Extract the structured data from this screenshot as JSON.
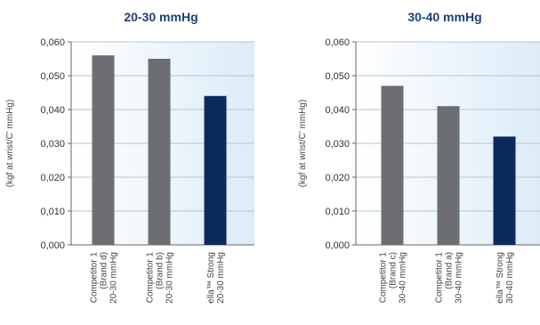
{
  "chart_data": [
    {
      "type": "bar",
      "title": "20-30 mmHg",
      "ylabel": "(kgf at wrist/C' mmHg)",
      "xlabel": "",
      "ylim": [
        0,
        0.06
      ],
      "yticks": [
        "0,000",
        "0,010",
        "0,020",
        "0,030",
        "0,040",
        "0,050",
        "0,060"
      ],
      "grid": true,
      "categories": [
        [
          "Competitor 1",
          "(Brand d)",
          "20-30 mmHg"
        ],
        [
          "Competitor 1",
          "(Brand b)",
          "20-30 mmHg"
        ],
        [
          "ella™ Strong",
          "20-30 mmHg"
        ]
      ],
      "values": [
        0.056,
        0.055,
        0.044
      ],
      "colors": [
        "#6d6e71",
        "#6d6e71",
        "#0d2a5e"
      ]
    },
    {
      "type": "bar",
      "title": "30-40 mmHg",
      "ylabel": "(kgf at wrist/C' mmHg)",
      "xlabel": "",
      "ylim": [
        0,
        0.06
      ],
      "yticks": [
        "0,000",
        "0,010",
        "0,020",
        "0,030",
        "0,040",
        "0,050",
        "0,060"
      ],
      "grid": true,
      "categories": [
        [
          "Competitor 1",
          "(Brand c)",
          "30-40 mmHg"
        ],
        [
          "Competitor 1",
          "(Brand a)",
          "30-40 mmHg"
        ],
        [
          "ella™ Strong",
          "30-40 mmHg"
        ]
      ],
      "values": [
        0.047,
        0.041,
        0.032
      ],
      "colors": [
        "#6d6e71",
        "#6d6e71",
        "#0d2a5e"
      ]
    }
  ]
}
